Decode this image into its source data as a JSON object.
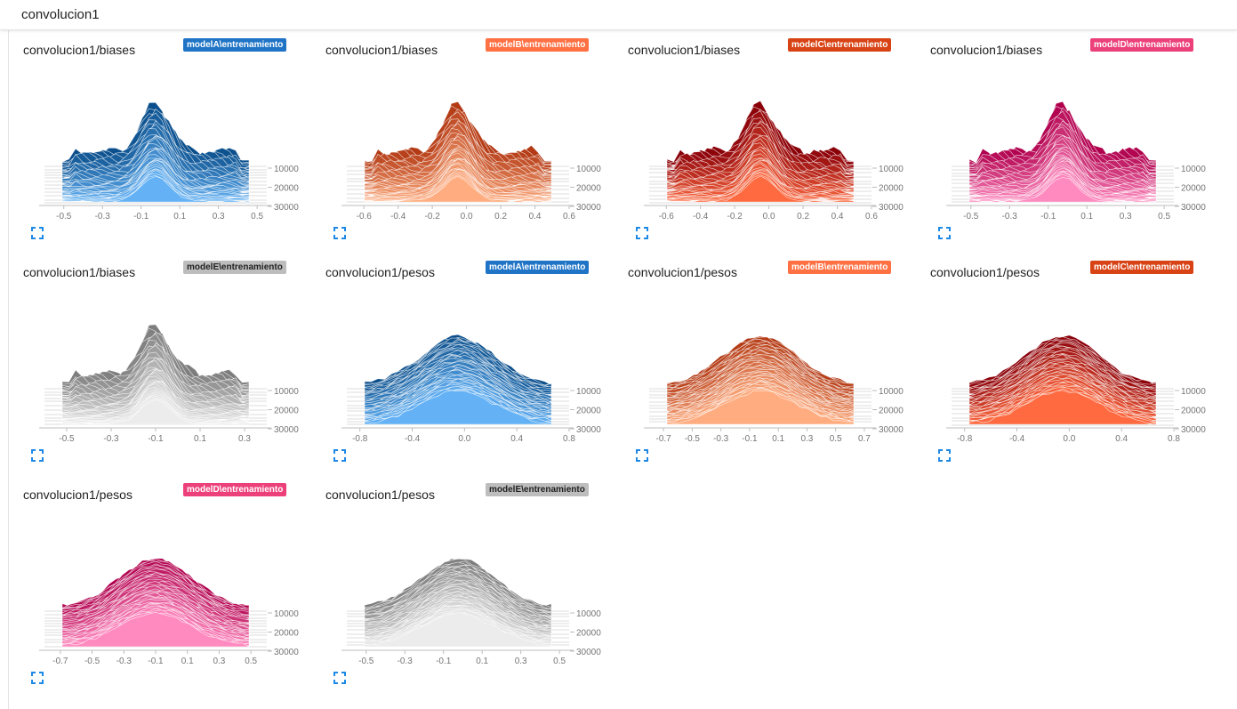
{
  "header": {
    "title": "convolucion1"
  },
  "cards": [
    {
      "title": "convolucion1/biases",
      "run": "modelA\\entrenamiento",
      "x_ticks": [
        "-0.5",
        "-0.3",
        "-0.1",
        "0.1",
        "0.3",
        "0.5"
      ],
      "x_range": [
        -0.6,
        0.55
      ],
      "y_ticks": [
        "10000",
        "20000",
        "30000"
      ],
      "palette": {
        "back": "#0b4f8c",
        "front": "#64b2f5"
      },
      "tag_color": "#1f74c6",
      "shape": "biases",
      "seed": 3
    },
    {
      "title": "convolucion1/biases",
      "run": "modelB\\entrenamiento",
      "x_ticks": [
        "-0.6",
        "-0.4",
        "-0.2",
        "0.0",
        "0.2",
        "0.4",
        "0.6"
      ],
      "x_range": [
        -0.7,
        0.6
      ],
      "y_ticks": [
        "10000",
        "20000",
        "30000"
      ],
      "palette": {
        "back": "#b33a15",
        "front": "#ffad80"
      },
      "tag_color": "#ff7043",
      "shape": "biases",
      "seed": 7
    },
    {
      "title": "convolucion1/biases",
      "run": "modelC\\entrenamiento",
      "x_ticks": [
        "-0.6",
        "-0.4",
        "-0.2",
        "0.0",
        "0.2",
        "0.4",
        "0.6"
      ],
      "x_range": [
        -0.7,
        0.6
      ],
      "y_ticks": [
        "10000",
        "20000",
        "30000"
      ],
      "palette": {
        "back": "#8a0009",
        "front": "#ff6a40"
      },
      "tag_color": "#d84315",
      "shape": "biases",
      "seed": 11
    },
    {
      "title": "convolucion1/biases",
      "run": "modelD\\entrenamiento",
      "x_ticks": [
        "-0.5",
        "-0.3",
        "-0.1",
        "0.1",
        "0.3",
        "0.5"
      ],
      "x_range": [
        -0.6,
        0.55
      ],
      "y_ticks": [
        "10000",
        "20000",
        "30000"
      ],
      "palette": {
        "back": "#b0004d",
        "front": "#ff8ac0"
      },
      "tag_color": "#ec407a",
      "shape": "biases",
      "seed": 17
    },
    {
      "title": "convolucion1/biases",
      "run": "modelE\\entrenamiento",
      "x_ticks": [
        "-0.5",
        "-0.3",
        "-0.1",
        "0.1",
        "0.3"
      ],
      "x_range": [
        -0.6,
        0.4
      ],
      "y_ticks": [
        "10000",
        "20000",
        "30000"
      ],
      "palette": {
        "back": "#7d7d7d",
        "front": "#ececec"
      },
      "tag_color": "#bdbdbd",
      "tag_text_color": "#212121",
      "shape": "biases",
      "seed": 23
    },
    {
      "title": "convolucion1/pesos",
      "run": "modelA\\entrenamiento",
      "x_ticks": [
        "-0.8",
        "-0.4",
        "0.0",
        "0.4",
        "0.8"
      ],
      "x_range": [
        -0.9,
        0.8
      ],
      "y_ticks": [
        "10000",
        "20000",
        "30000"
      ],
      "palette": {
        "back": "#0b4f8c",
        "front": "#64b2f5"
      },
      "tag_color": "#1f74c6",
      "shape": "pesos",
      "seed": 29
    },
    {
      "title": "convolucion1/pesos",
      "run": "modelB\\entrenamiento",
      "x_ticks": [
        "-0.7",
        "-0.5",
        "-0.3",
        "-0.1",
        "0.1",
        "0.3",
        "0.5",
        "0.7"
      ],
      "x_range": [
        -0.8,
        0.75
      ],
      "y_ticks": [
        "10000",
        "20000",
        "30000"
      ],
      "palette": {
        "back": "#b33a15",
        "front": "#ffad80"
      },
      "tag_color": "#ff7043",
      "shape": "pesos",
      "seed": 31
    },
    {
      "title": "convolucion1/pesos",
      "run": "modelC\\entrenamiento",
      "x_ticks": [
        "-0.8",
        "-0.4",
        "0.0",
        "0.4",
        "0.8"
      ],
      "x_range": [
        -0.9,
        0.8
      ],
      "y_ticks": [
        "10000",
        "20000",
        "30000"
      ],
      "palette": {
        "back": "#8a0009",
        "front": "#ff6a40"
      },
      "tag_color": "#d84315",
      "shape": "pesos",
      "seed": 37
    },
    {
      "title": "convolucion1/pesos",
      "run": "modelD\\entrenamiento",
      "x_ticks": [
        "-0.7",
        "-0.5",
        "-0.3",
        "-0.1",
        "0.1",
        "0.3",
        "0.5"
      ],
      "x_range": [
        -0.8,
        0.6
      ],
      "y_ticks": [
        "10000",
        "20000",
        "30000"
      ],
      "palette": {
        "back": "#b0004d",
        "front": "#ff8ac0"
      },
      "tag_color": "#ec407a",
      "shape": "pesos",
      "seed": 41
    },
    {
      "title": "convolucion1/pesos",
      "run": "modelE\\entrenamiento",
      "x_ticks": [
        "-0.5",
        "-0.3",
        "-0.1",
        "0.1",
        "0.3",
        "0.5"
      ],
      "x_range": [
        -0.6,
        0.55
      ],
      "y_ticks": [
        "10000",
        "20000",
        "30000"
      ],
      "palette": {
        "back": "#7d7d7d",
        "front": "#ececec"
      },
      "tag_color": "#bdbdbd",
      "tag_text_color": "#212121",
      "shape": "pesos",
      "seed": 43
    }
  ]
}
